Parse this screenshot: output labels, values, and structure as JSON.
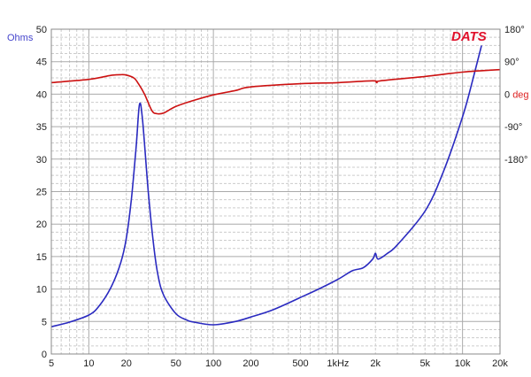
{
  "chart_data": {
    "type": "line",
    "xscale": "log",
    "xlim": [
      5,
      20000
    ],
    "x_ticks": [
      5,
      10,
      20,
      50,
      100,
      200,
      500,
      1000,
      2000,
      5000,
      10000,
      20000
    ],
    "x_tick_labels": [
      "5",
      "10",
      "20",
      "50",
      "100",
      "200",
      "500",
      "1kHz",
      "2k",
      "5k",
      "10k",
      "20k"
    ],
    "ylim": [
      0,
      50
    ],
    "y_ticks": [
      0,
      5,
      10,
      15,
      20,
      25,
      30,
      35,
      40,
      45,
      50
    ],
    "ylabel": "Ohms",
    "y2_ticks": [
      180,
      90,
      0,
      -90,
      -180
    ],
    "y2_tick_labels": [
      "180°",
      "90°",
      "0 deg",
      "-90°",
      "-180°"
    ],
    "grid": true,
    "logo": "DATS",
    "series": [
      {
        "axis": "left",
        "color": "#2a2ac0",
        "x": [
          5,
          7,
          10,
          12,
          15,
          18,
          20,
          22,
          24,
          25.5,
          27,
          30,
          33,
          36,
          40,
          50,
          60,
          70,
          100,
          150,
          200,
          300,
          500,
          700,
          1000,
          1300,
          1600,
          1900,
          2000,
          2100,
          2500,
          3000,
          5000,
          7000,
          10000,
          12000,
          14200
        ],
        "y": [
          4.2,
          4.9,
          6.0,
          7.3,
          10.2,
          14.0,
          17.8,
          24.0,
          32.0,
          38.4,
          36.0,
          25.0,
          17.0,
          12.0,
          9.0,
          6.2,
          5.3,
          4.9,
          4.5,
          5.0,
          5.7,
          6.8,
          8.7,
          10.0,
          11.5,
          12.8,
          13.3,
          14.6,
          15.5,
          14.6,
          15.5,
          16.8,
          22.0,
          28.0,
          36.5,
          42.0,
          47.5
        ]
      },
      {
        "axis": "right",
        "color": "#cc1111",
        "x": [
          5,
          10,
          15,
          18,
          20,
          23,
          25,
          28,
          32,
          35,
          40,
          50,
          70,
          100,
          150,
          200,
          500,
          1000,
          1900,
          2050,
          2200,
          5000,
          10000,
          20000
        ],
        "y": [
          32,
          41,
          52,
          54,
          53,
          45,
          29,
          0,
          -45,
          -54,
          -52,
          -34,
          -17,
          -2,
          10,
          20,
          29,
          32,
          37,
          32,
          37,
          49,
          61,
          68
        ]
      }
    ]
  }
}
